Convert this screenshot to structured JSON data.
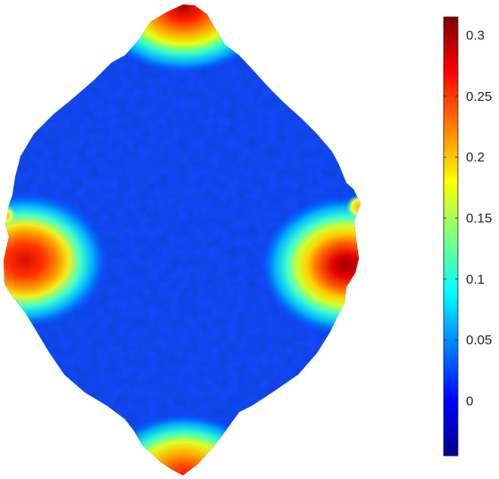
{
  "chart_data": {
    "type": "heatmap",
    "title": "",
    "colormap": "jet",
    "colorbar": {
      "clim": [
        -0.045,
        0.315
      ],
      "ticks": [
        0,
        0.05,
        0.1,
        0.15,
        0.2,
        0.25,
        0.3
      ],
      "tick_labels": [
        "0",
        "0.05",
        "0.1",
        "0.15",
        "0.2",
        "0.25",
        "0.3"
      ],
      "position": "right"
    },
    "surface": {
      "shape": "sphere-like surface viewed from front, with four lobes",
      "background_value": 0.0,
      "hotspots": [
        {
          "location": "top",
          "peak_value": 0.3
        },
        {
          "location": "bottom",
          "peak_value": 0.28
        },
        {
          "location": "left",
          "peak_value": 0.28
        },
        {
          "location": "right",
          "peak_value": 0.3
        }
      ]
    }
  }
}
